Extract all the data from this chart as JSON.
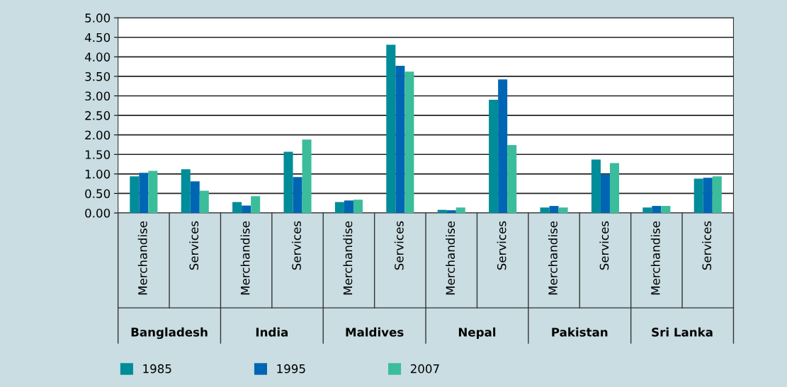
{
  "chart_data": {
    "type": "bar",
    "categories": [
      "Merchandise",
      "Services",
      "Merchandise",
      "Services",
      "Merchandise",
      "Services",
      "Merchandise",
      "Services",
      "Merchandise",
      "Services",
      "Merchandise",
      "Services"
    ],
    "annotations": [
      "Bangladesh",
      "India",
      "Maldives",
      "Nepal",
      "Pakistan",
      "Sri Lanka"
    ],
    "series": [
      {
        "name": "1985",
        "color": "#008c99",
        "values": [
          0.94,
          1.12,
          0.28,
          1.57,
          0.28,
          4.31,
          0.08,
          2.9,
          0.14,
          1.37,
          0.14,
          0.88
        ]
      },
      {
        "name": "1995",
        "color": "#0066b3",
        "values": [
          1.03,
          0.81,
          0.19,
          0.92,
          0.32,
          3.77,
          0.07,
          3.42,
          0.18,
          0.99,
          0.18,
          0.9
        ]
      },
      {
        "name": "2007",
        "color": "#3bbd9c",
        "values": [
          1.08,
          0.57,
          0.43,
          1.88,
          0.34,
          3.62,
          0.14,
          1.74,
          0.14,
          1.28,
          0.18,
          0.94
        ]
      }
    ],
    "ylim": [
      0,
      5
    ],
    "yticks": [
      {
        "value": 0,
        "label": "0.00"
      },
      {
        "value": 0.5,
        "label": "0.50"
      },
      {
        "value": 1,
        "label": "1.00"
      },
      {
        "value": 1.5,
        "label": "1.50"
      },
      {
        "value": 2,
        "label": "2.00"
      },
      {
        "value": 2.5,
        "label": "2.50"
      },
      {
        "value": 3,
        "label": "3.00"
      },
      {
        "value": 3.5,
        "label": "3.50"
      },
      {
        "value": 4,
        "label": "4.00"
      },
      {
        "value": 4.5,
        "label": "4.50"
      },
      {
        "value": 5,
        "label": "5.00"
      }
    ],
    "grid": "y",
    "legend": "bottom"
  }
}
